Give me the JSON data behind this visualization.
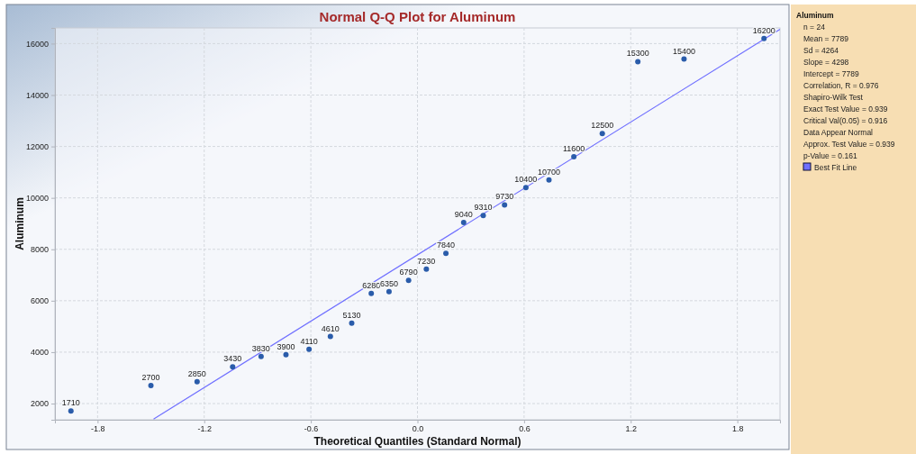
{
  "chart_data": {
    "type": "scatter",
    "title": "Normal Q-Q Plot for Aluminum",
    "xlabel": "Theoretical Quantiles (Standard Normal)",
    "ylabel": "Aluminum",
    "legend_title": "Aluminum",
    "annotations": [
      "n = 24",
      "Mean = 7789",
      "Sd = 4264",
      "Slope = 4298",
      "Intercept = 7789",
      "Correlation, R = 0.976",
      "Shapiro-Wilk Test",
      "Exact Test Value = 0.939",
      "Critical Val(0.05) = 0.916",
      "Data Appear Normal",
      "Approx. Test Value = 0.939",
      "p-Value = 0.161"
    ],
    "series": [
      {
        "color": "#2a5caa",
        "marker": "circle",
        "x": [
          -1.95,
          -1.5,
          -1.24,
          -1.04,
          -0.88,
          -0.74,
          -0.61,
          -0.49,
          -0.37,
          -0.26,
          -0.16,
          -0.05,
          0.05,
          0.16,
          0.26,
          0.37,
          0.49,
          0.61,
          0.74,
          0.88,
          1.04,
          1.24,
          1.5,
          1.95
        ],
        "values": [
          1710,
          2700,
          2850,
          3430,
          3830,
          3900,
          4110,
          4610,
          5130,
          6280,
          6350,
          6790,
          7230,
          7840,
          9040,
          9310,
          9730,
          10400,
          10700,
          11600,
          12500,
          15300,
          15400,
          16200
        ],
        "value_labels": [
          "1710",
          "2700",
          "2850",
          "3430",
          "3830",
          "3900",
          "4110",
          "4610",
          "5130",
          "6280",
          "6350",
          "6790",
          "7230",
          "7840",
          "9040",
          "9310",
          "9730",
          "10400",
          "10700",
          "11600",
          "12500",
          "15300",
          "15400",
          "16200"
        ]
      },
      {
        "type": "line",
        "name": "Best Fit Line",
        "color": "#7070ff",
        "x": [
          -1.485,
          2.04
        ],
        "values": [
          1400,
          16560
        ]
      }
    ],
    "line_style": "solid",
    "grid": true,
    "legend": "right",
    "xlim": [
      -2.04,
      2.04
    ],
    "ylim": [
      1370,
      16610
    ],
    "xticks": [
      -1.8,
      -1.2,
      -0.6,
      {
        "value": 0,
        "label": "0.0"
      },
      0.6,
      1.2,
      1.8
    ],
    "yticks": [
      2000,
      4000,
      6000,
      8000,
      10000,
      12000,
      14000,
      16000
    ]
  }
}
